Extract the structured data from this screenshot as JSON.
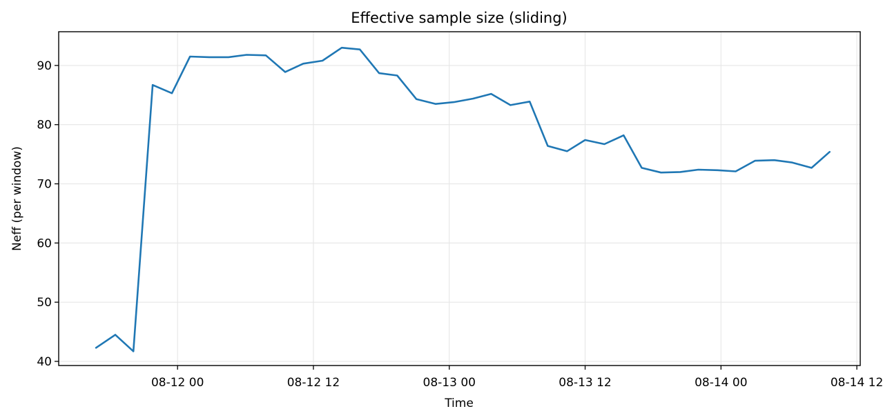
{
  "colors": {
    "series": "#1f77b4",
    "background": "#ffffff"
  },
  "chart_data": {
    "type": "line",
    "title": "Effective sample size (sliding)",
    "xlabel": "Time",
    "ylabel": "Neff (per window)",
    "grid": true,
    "x_unit": "hours since 08-12 00",
    "xlim": [
      -10.5,
      60.3
    ],
    "ylim": [
      39.3,
      95.7
    ],
    "x_ticks": [
      {
        "value": 0,
        "label": "08-12 00"
      },
      {
        "value": 12,
        "label": "08-12 12"
      },
      {
        "value": 24,
        "label": "08-13 00"
      },
      {
        "value": 36,
        "label": "08-13 12"
      },
      {
        "value": 48,
        "label": "08-14 00"
      },
      {
        "value": 60,
        "label": "08-14 12"
      }
    ],
    "y_ticks": [
      40,
      50,
      60,
      70,
      80,
      90
    ],
    "series": [
      {
        "name": "Neff",
        "x": [
          -7.2,
          -5.5,
          -3.9,
          -2.2,
          -0.5,
          1.1,
          2.8,
          4.5,
          6.1,
          7.8,
          9.5,
          11.1,
          12.8,
          14.5,
          16.1,
          17.8,
          19.4,
          21.1,
          22.8,
          24.4,
          26.1,
          27.7,
          29.4,
          31.1,
          32.7,
          34.4,
          36.0,
          37.7,
          39.4,
          41.0,
          42.7,
          44.4,
          46.0,
          47.7,
          49.3,
          51.0,
          52.7,
          54.3,
          56.0,
          57.6
        ],
        "values": [
          42.3,
          44.5,
          41.7,
          86.7,
          85.3,
          91.5,
          91.4,
          91.4,
          91.8,
          91.7,
          88.9,
          90.3,
          90.8,
          93.0,
          92.7,
          88.7,
          88.3,
          84.3,
          83.5,
          83.8,
          84.4,
          85.2,
          83.3,
          83.9,
          76.4,
          75.5,
          77.4,
          76.7,
          78.2,
          72.7,
          71.9,
          72.0,
          72.4,
          72.3,
          72.1,
          73.9,
          74.0,
          73.6,
          72.7,
          75.4
        ]
      }
    ]
  }
}
